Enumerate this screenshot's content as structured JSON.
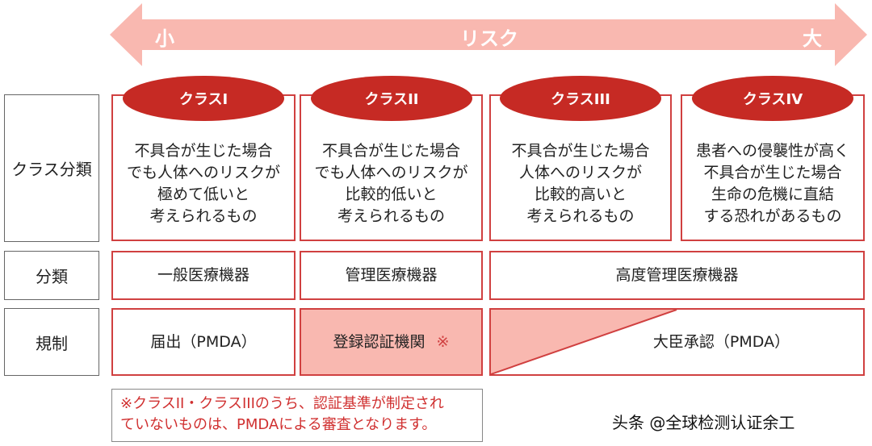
{
  "risk_arrow": {
    "label": "リスク",
    "low": "小",
    "high": "大",
    "color": "#f9b8b0"
  },
  "row_labels": [
    "クラス分類",
    "分類",
    "規制"
  ],
  "classes": [
    {
      "name": "クラスI",
      "desc": [
        "不具合が生じた場合",
        "でも人体へのリスクが",
        "極めて低いと",
        "考えられるもの"
      ]
    },
    {
      "name": "クラスII",
      "desc": [
        "不具合が生じた場合",
        "でも人体へのリスクが",
        "比較的低いと",
        "考えられるもの"
      ]
    },
    {
      "name": "クラスIII",
      "desc": [
        "不具合が生じた場合",
        "人体へのリスクが",
        "比較的高いと",
        "考えられるもの"
      ]
    },
    {
      "name": "クラスIV",
      "desc": [
        "患者への侵襲性が高く",
        "不具合が生じた場合",
        "生命の危機に直結",
        "する恐れがあるもの"
      ]
    }
  ],
  "categories": [
    "一般医療機器",
    "管理医療機器",
    "高度管理医療機器"
  ],
  "regulation": [
    "届出（PMDA）",
    "登録認証機関",
    "※",
    "大臣承認（PMDA）"
  ],
  "note": [
    "※クラスII・クラスIIIのうち、認証基準が制定され",
    "ていないものは、PMDAによる審査となります。"
  ],
  "watermark": "头条 @全球检测认证余工",
  "colors": {
    "accent": "#c62a24",
    "pink": "#f9b8b0",
    "border": "#d04040"
  }
}
